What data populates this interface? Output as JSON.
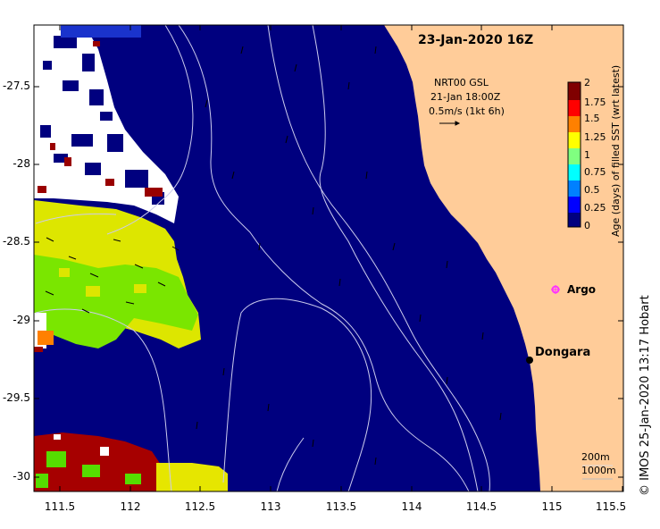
{
  "title": "23-Jan-2020 16Z",
  "current_legend": {
    "line1": "NRT00 GSL",
    "line2": "21-Jan 18:00Z",
    "line3": "0.5m/s (1kt 6h)"
  },
  "colorbar": {
    "title": "Age (days) of filled SST (wrt latest)",
    "ticks": [
      "2",
      "1.75",
      "1.5",
      "1.25",
      "1",
      "0.75",
      "0.5",
      "0.25",
      "0"
    ],
    "colors": [
      "#00007f",
      "#0000ff",
      "#0080ff",
      "#00ffff",
      "#80ff80",
      "#ffff00",
      "#ff8000",
      "#ff0000",
      "#800000"
    ]
  },
  "axes": {
    "lat_ticks": [
      "-27.5",
      "-28",
      "-28.5",
      "-29",
      "-29.5",
      "-30"
    ],
    "lon_ticks": [
      "111.5",
      "112",
      "112.5",
      "113",
      "113.5",
      "114",
      "114.5",
      "115",
      "115.5"
    ]
  },
  "places": {
    "argo": "Argo",
    "dongara": "Dongara"
  },
  "isobaths": {
    "shallow": "200m",
    "deep": "1000m"
  },
  "credit": "© IMOS 25-Jan-2020 13:17 Hobart",
  "colors": {
    "ocean": "#00007f",
    "land": "#ffcc99",
    "argo": "#ff33ff"
  }
}
